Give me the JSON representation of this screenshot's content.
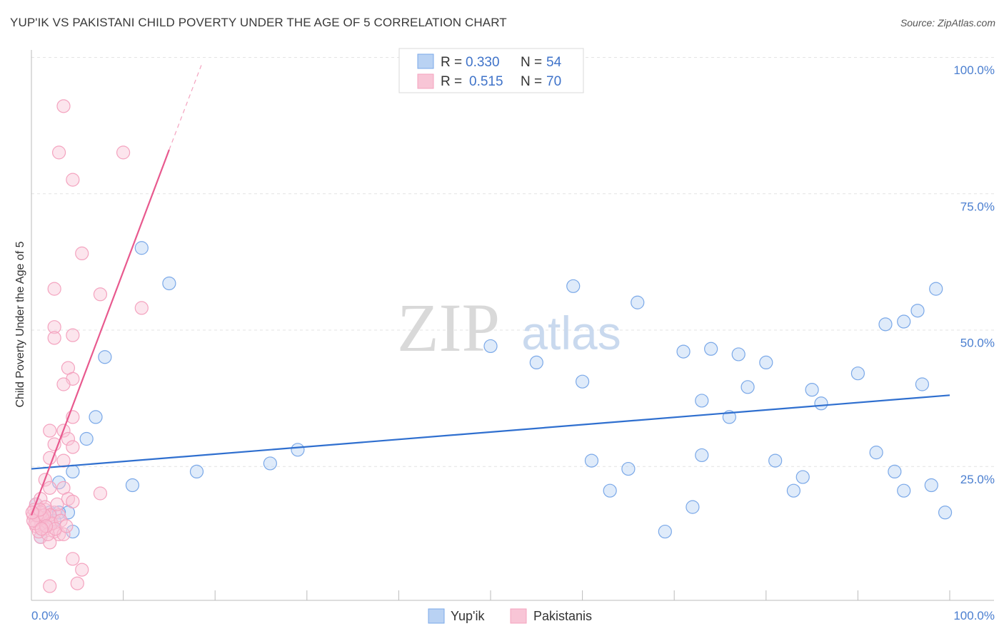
{
  "title": "YUP'IK VS PAKISTANI CHILD POVERTY UNDER THE AGE OF 5 CORRELATION CHART",
  "source": "Source: ZipAtlas.com",
  "watermark": {
    "zip": "ZIP",
    "atlas": "atlas"
  },
  "chart_data": {
    "type": "scatter",
    "xlabel": "",
    "ylabel": "Child Poverty Under the Age of 5",
    "xlim": [
      0,
      100
    ],
    "ylim": [
      0,
      100
    ],
    "x_tick_labels": [
      "0.0%",
      "100.0%"
    ],
    "y_tick_labels": [
      "100.0%",
      "75.0%",
      "50.0%",
      "25.0%"
    ],
    "y_tick_values": [
      100,
      75,
      50,
      25
    ],
    "legend": [
      {
        "r_label": "R =",
        "r_value": "0.330",
        "n_label": "N =",
        "n_value": "54"
      },
      {
        "r_label": "R =",
        "r_value": "0.515",
        "n_label": "N =",
        "n_value": "70"
      }
    ],
    "series": [
      {
        "name": "Yup'ik",
        "color": "#7aa8e8",
        "line_color": "#2f6fcf",
        "trend": {
          "x0": 0,
          "y0": 24.5,
          "x1": 100,
          "y1": 38
        },
        "points": [
          [
            12,
            65
          ],
          [
            15,
            58.5
          ],
          [
            59,
            58
          ],
          [
            66,
            55
          ],
          [
            98.5,
            57.5
          ],
          [
            96.5,
            53.5
          ],
          [
            95,
            51.5
          ],
          [
            93,
            51
          ],
          [
            50,
            47
          ],
          [
            71,
            46
          ],
          [
            74,
            46.5
          ],
          [
            77,
            45.5
          ],
          [
            80,
            44
          ],
          [
            55,
            44
          ],
          [
            60,
            40.5
          ],
          [
            8,
            45
          ],
          [
            90,
            42
          ],
          [
            97,
            40
          ],
          [
            85,
            39
          ],
          [
            78,
            39.5
          ],
          [
            73,
            37
          ],
          [
            86,
            36.5
          ],
          [
            76,
            34
          ],
          [
            7,
            34
          ],
          [
            6,
            30
          ],
          [
            29,
            28
          ],
          [
            26,
            25.5
          ],
          [
            18,
            24
          ],
          [
            61,
            26
          ],
          [
            73,
            27
          ],
          [
            81,
            26
          ],
          [
            92,
            27.5
          ],
          [
            4.5,
            24
          ],
          [
            65,
            24.5
          ],
          [
            94,
            24
          ],
          [
            84,
            23
          ],
          [
            3,
            22
          ],
          [
            11,
            21.5
          ],
          [
            98,
            21.5
          ],
          [
            63,
            20.5
          ],
          [
            83,
            20.5
          ],
          [
            95,
            20.5
          ],
          [
            72,
            17.5
          ],
          [
            4,
            16.5
          ],
          [
            2,
            16.5
          ],
          [
            3,
            16.5
          ],
          [
            99.5,
            16.5
          ],
          [
            69,
            13
          ],
          [
            4.5,
            13
          ],
          [
            1,
            12
          ],
          [
            1.5,
            14
          ],
          [
            0.5,
            18
          ],
          [
            2.5,
            15
          ],
          [
            1,
            15.5
          ]
        ]
      },
      {
        "name": "Pakistanis",
        "color": "#f4a3bf",
        "line_color": "#e8598e",
        "trend": {
          "x0": 0,
          "y0": 16,
          "x1": 15,
          "y1": 83
        },
        "trend_ext": {
          "x0": 15,
          "y0": 83,
          "x1": 18.5,
          "y1": 98.5
        },
        "points": [
          [
            3.5,
            91
          ],
          [
            3,
            82.5
          ],
          [
            10,
            82.5
          ],
          [
            4.5,
            77.5
          ],
          [
            5.5,
            64
          ],
          [
            7.5,
            56.5
          ],
          [
            2.5,
            57.5
          ],
          [
            12,
            54
          ],
          [
            2.5,
            50.5
          ],
          [
            2.5,
            48.5
          ],
          [
            4.5,
            49
          ],
          [
            4,
            43
          ],
          [
            4.5,
            41
          ],
          [
            3.5,
            40
          ],
          [
            4.5,
            34
          ],
          [
            2,
            31.5
          ],
          [
            3.5,
            31.5
          ],
          [
            4,
            30
          ],
          [
            2.5,
            29
          ],
          [
            4.5,
            28.5
          ],
          [
            2,
            26.5
          ],
          [
            3.5,
            26
          ],
          [
            1.5,
            22.5
          ],
          [
            2,
            21
          ],
          [
            3.5,
            21
          ],
          [
            7.5,
            20
          ],
          [
            4,
            19
          ],
          [
            4.5,
            18.5
          ],
          [
            0.5,
            18
          ],
          [
            1,
            19
          ],
          [
            1.5,
            17
          ],
          [
            2.5,
            16.5
          ],
          [
            3,
            16
          ],
          [
            0.2,
            16
          ],
          [
            0.5,
            15
          ],
          [
            1,
            15
          ],
          [
            1.5,
            15
          ],
          [
            2,
            14.5
          ],
          [
            1,
            14
          ],
          [
            0.5,
            14
          ],
          [
            1.5,
            13.5
          ],
          [
            2.5,
            13
          ],
          [
            3,
            12.5
          ],
          [
            3.5,
            12.5
          ],
          [
            1,
            12
          ],
          [
            2,
            11
          ],
          [
            4.5,
            8
          ],
          [
            5.5,
            6
          ],
          [
            2,
            3
          ],
          [
            5,
            3.5
          ],
          [
            1.5,
            17.5
          ],
          [
            2,
            16
          ],
          [
            0.3,
            17
          ],
          [
            1,
            16.5
          ],
          [
            1.2,
            15.5
          ],
          [
            0.8,
            13
          ],
          [
            2.2,
            14.5
          ],
          [
            0.4,
            14.5
          ],
          [
            1.8,
            12.5
          ],
          [
            3.2,
            15
          ],
          [
            2.8,
            18
          ],
          [
            0.6,
            16
          ],
          [
            1.4,
            16
          ],
          [
            0.2,
            15
          ],
          [
            2.6,
            13.5
          ],
          [
            1.6,
            14
          ],
          [
            0.9,
            17
          ],
          [
            3.8,
            14
          ],
          [
            0.1,
            16.5
          ],
          [
            1.1,
            13.5
          ]
        ]
      }
    ]
  }
}
